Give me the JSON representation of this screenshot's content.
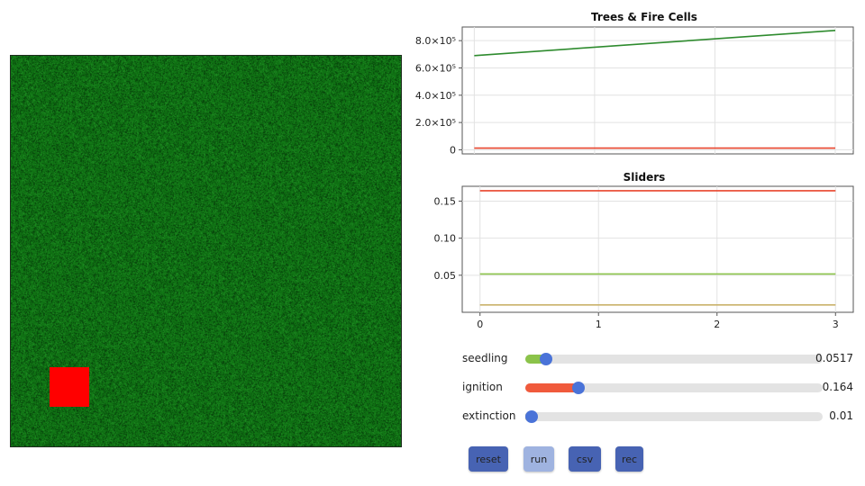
{
  "colors": {
    "tree_green": "#0e6a12",
    "fire_red": "#ff0000",
    "line_green": "#2e8b2e",
    "line_red": "#e8442c",
    "seedling_green": "#8bc34a",
    "ignition_red": "#f05a3c",
    "extinction_tan": "#c9b26a",
    "knob_blue": "#4a73d8",
    "button_dark": "#4763b3",
    "button_light": "#9fb3e0"
  },
  "top_chart": {
    "title": "Trees & Fire Cells",
    "y_ticks": [
      "0",
      "2.0×10⁵",
      "4.0×10⁵",
      "6.0×10⁵",
      "8.0×10⁵"
    ]
  },
  "bottom_chart": {
    "title": "Sliders",
    "y_ticks": [
      "0.05",
      "0.10",
      "0.15"
    ],
    "x_ticks": [
      "0",
      "1",
      "2",
      "3"
    ]
  },
  "chart_data": [
    {
      "type": "line",
      "title": "Trees & Fire Cells",
      "x": [
        0,
        3
      ],
      "xlim": [
        -0.1,
        3.15
      ],
      "ylim": [
        -30000,
        900000
      ],
      "y_tick_values": [
        0,
        200000,
        400000,
        600000,
        800000
      ],
      "grid": true,
      "series": [
        {
          "values": [
            690000,
            875000
          ],
          "color": "#2e8b2e"
        },
        {
          "values": [
            12000,
            12000
          ],
          "color": "#e8442c"
        }
      ]
    },
    {
      "type": "line",
      "title": "Sliders",
      "x": [
        0,
        3
      ],
      "xlim": [
        -0.15,
        3.15
      ],
      "ylim": [
        0.0,
        0.17
      ],
      "y_tick_values": [
        0.05,
        0.1,
        0.15
      ],
      "x_tick_values": [
        0,
        1,
        2,
        3
      ],
      "grid": true,
      "series": [
        {
          "values": [
            0.164,
            0.164
          ],
          "color": "#e8442c"
        },
        {
          "values": [
            0.0517,
            0.0517
          ],
          "color": "#8bc34a"
        },
        {
          "values": [
            0.01,
            0.01
          ],
          "color": "#c9b26a"
        }
      ]
    }
  ],
  "sliders": [
    {
      "label": "seedling",
      "value_text": "0.0517",
      "fraction": 0.07,
      "fill_color": "#8bc34a"
    },
    {
      "label": "ignition",
      "value_text": "0.164",
      "fraction": 0.18,
      "fill_color": "#f05a3c"
    },
    {
      "label": "extinction",
      "value_text": "0.01",
      "fraction": 0.02,
      "fill_color": "#c9b26a"
    }
  ],
  "buttons": {
    "reset": "reset",
    "run": "run",
    "csv": "csv",
    "rec": "rec"
  }
}
